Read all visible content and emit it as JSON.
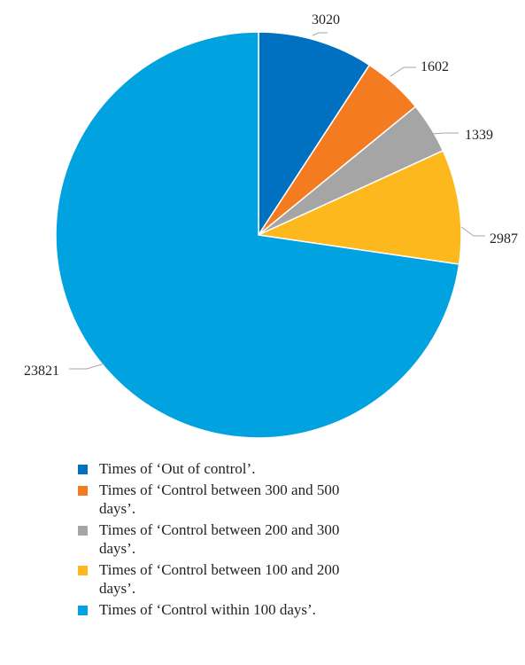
{
  "chart_data": {
    "type": "pie",
    "start_angle": "12 o'clock",
    "direction": "clockwise",
    "slices": [
      {
        "label": "Times of ‘Out of control’.",
        "value": 3020,
        "color": "#0070c0"
      },
      {
        "label": "Times of ‘Control between 300 and 500 days’.",
        "value": 1602,
        "color": "#f47b20"
      },
      {
        "label": "Times of ‘Control between 200 and 300 days’.",
        "value": 1339,
        "color": "#a5a5a5"
      },
      {
        "label": "Times of ‘Control between 100 and 200 days’.",
        "value": 2987,
        "color": "#fdb81e"
      },
      {
        "label": "Times of ‘Control within 100 days’.",
        "value": 23821,
        "color": "#00a2e0"
      }
    ],
    "legend_position": "bottom-left"
  }
}
